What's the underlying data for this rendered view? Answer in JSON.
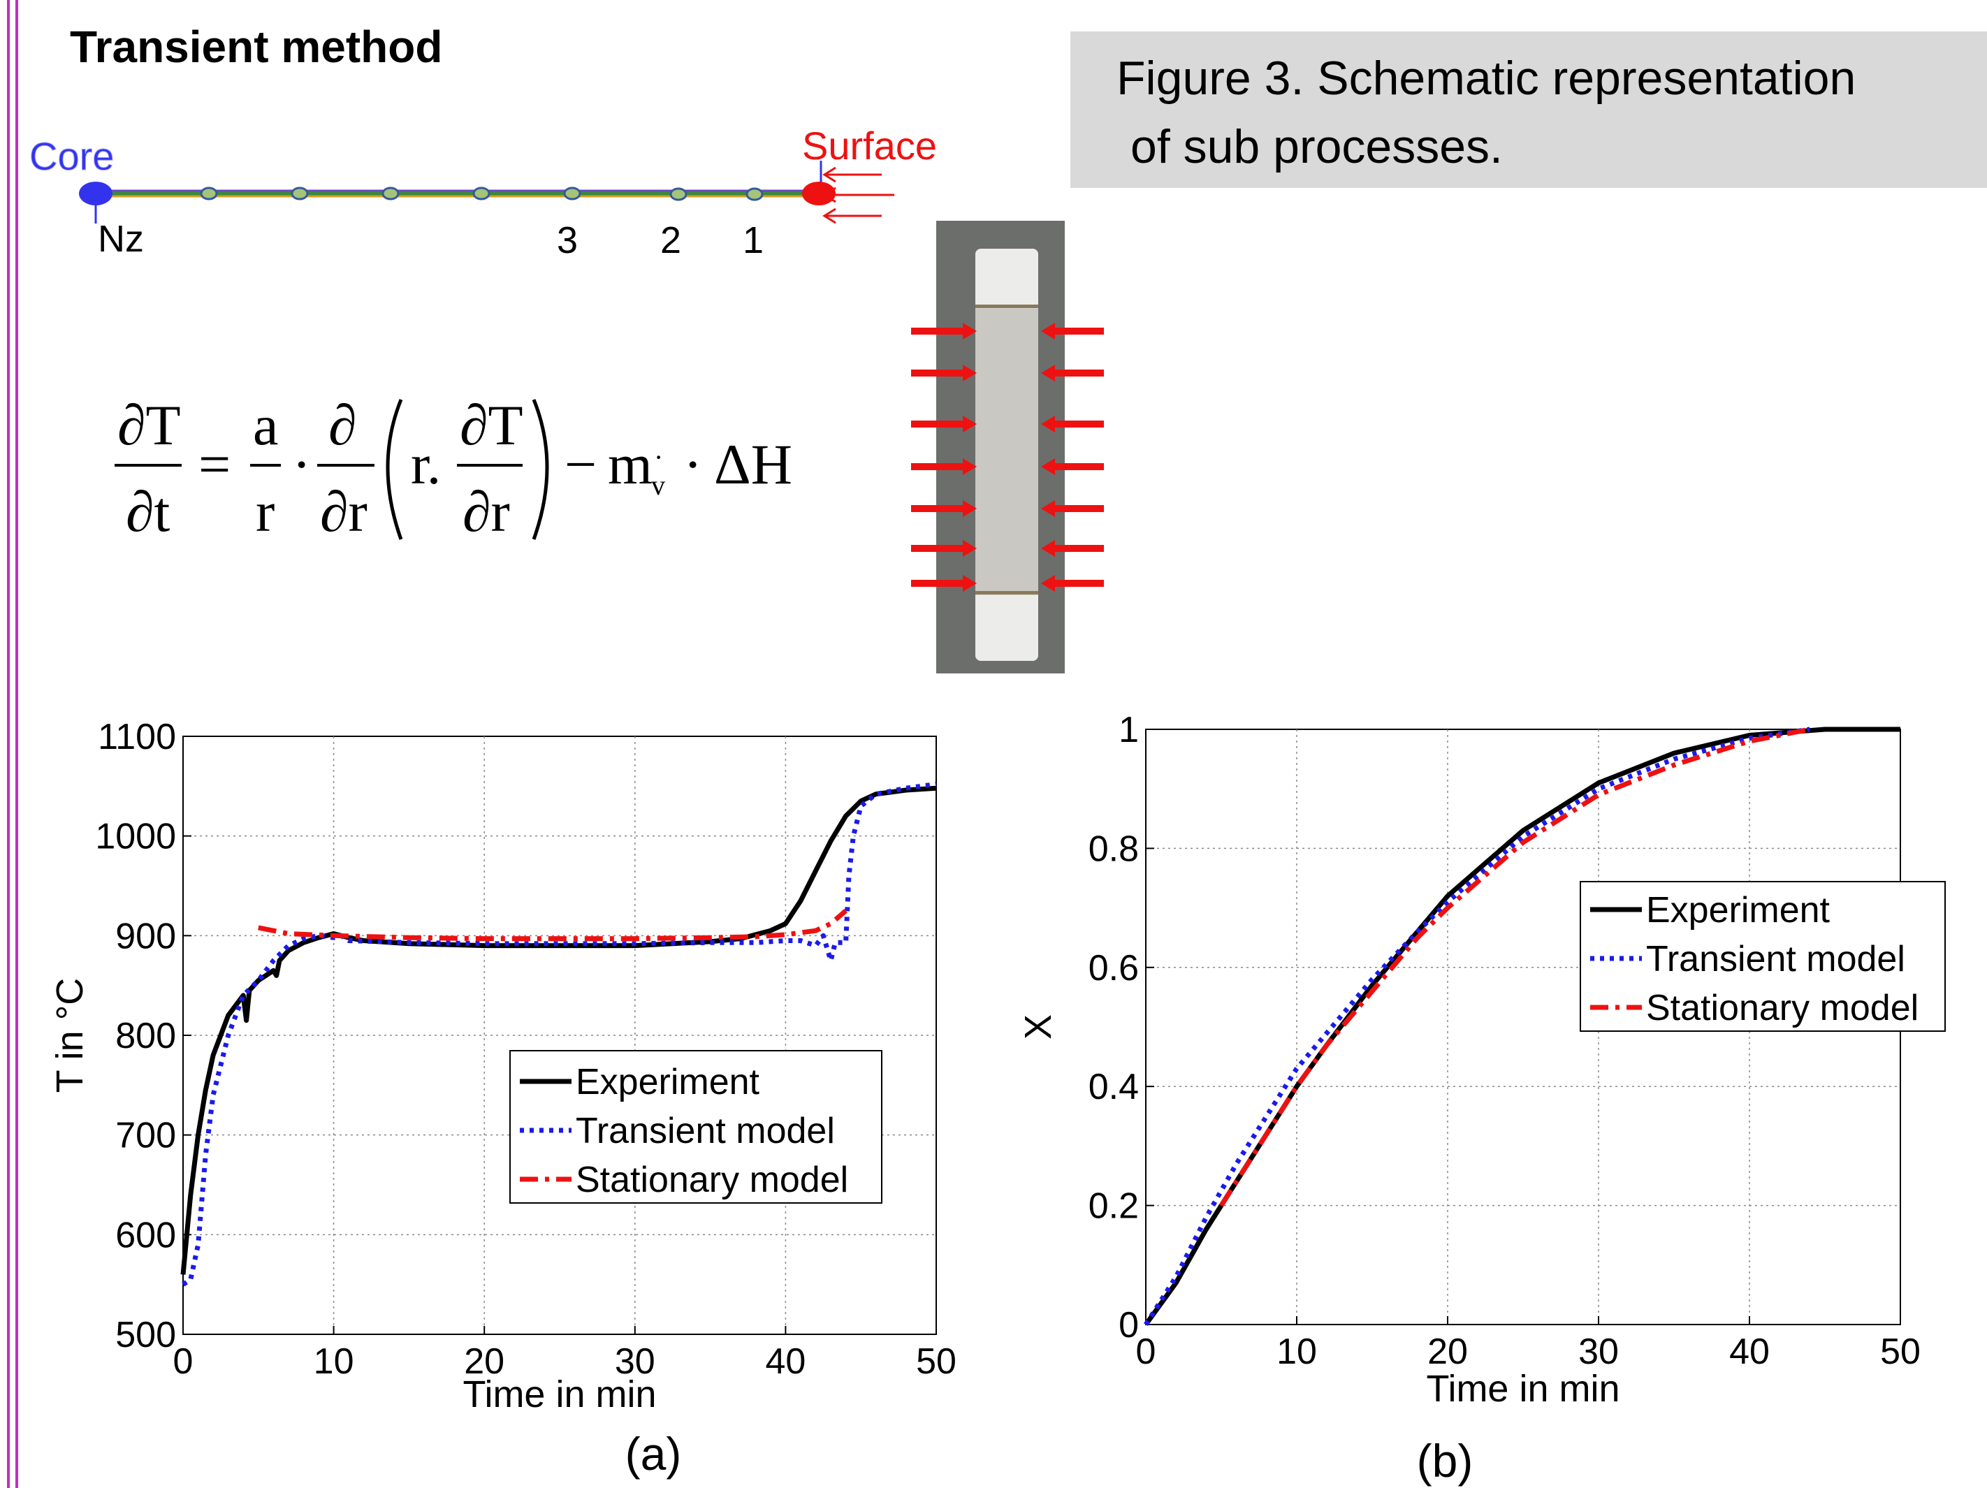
{
  "slide": {
    "title": "Transient method",
    "caption_line1": "Figure 3. Schematic representation",
    "caption_line2": "of sub processes."
  },
  "diagram": {
    "core_label": "Core",
    "surface_label": "Surface",
    "node_labels": [
      "Nz",
      "3",
      "2",
      "1"
    ],
    "colors": {
      "core": "#3333ee",
      "surface": "#ee1111",
      "arrow": "#ee1111"
    }
  },
  "equation": {
    "lhs_num": "∂T",
    "lhs_den": "∂t",
    "eq": "=",
    "a": "a",
    "r": "r",
    "dot1": "·",
    "d_num": "∂",
    "d_den": "∂r",
    "inner_r": "r.",
    "dT_num": "∂T",
    "dT_den": "∂r",
    "minus": "−",
    "m": "m",
    "m_dot": "·",
    "m_sub": "v",
    "dot2": "·",
    "dH": "ΔH"
  },
  "chart_data": [
    {
      "type": "line",
      "panel_label": "(a)",
      "xlabel": "Time in min",
      "ylabel": "T in °C",
      "xlim": [
        0,
        50
      ],
      "ylim": [
        500,
        1100
      ],
      "xticks": [
        0,
        10,
        20,
        30,
        40,
        50
      ],
      "yticks": [
        500,
        600,
        700,
        800,
        900,
        1000,
        1100
      ],
      "grid": true,
      "legend_position": "right-middle",
      "series": [
        {
          "name": "Experiment",
          "color": "#000000",
          "style": "solid",
          "points": [
            [
              0,
              560
            ],
            [
              0.5,
              640
            ],
            [
              1,
              700
            ],
            [
              1.5,
              745
            ],
            [
              2,
              780
            ],
            [
              3,
              820
            ],
            [
              4,
              840
            ],
            [
              4.2,
              815
            ],
            [
              4.4,
              845
            ],
            [
              5,
              855
            ],
            [
              6,
              865
            ],
            [
              6.2,
              860
            ],
            [
              6.4,
              875
            ],
            [
              7,
              885
            ],
            [
              8,
              893
            ],
            [
              9,
              898
            ],
            [
              10,
              902
            ],
            [
              11,
              898
            ],
            [
              12,
              895
            ],
            [
              15,
              892
            ],
            [
              20,
              890
            ],
            [
              25,
              890
            ],
            [
              30,
              890
            ],
            [
              35,
              894
            ],
            [
              37,
              897
            ],
            [
              39,
              905
            ],
            [
              40,
              912
            ],
            [
              41,
              935
            ],
            [
              42,
              965
            ],
            [
              43,
              995
            ],
            [
              44,
              1020
            ],
            [
              45,
              1035
            ],
            [
              46,
              1042
            ],
            [
              48,
              1046
            ],
            [
              50,
              1048
            ]
          ]
        },
        {
          "name": "Transient model",
          "color": "#1a1aee",
          "style": "dotted",
          "points": [
            [
              0,
              550
            ],
            [
              0.5,
              555
            ],
            [
              1,
              590
            ],
            [
              1.5,
              680
            ],
            [
              2,
              740
            ],
            [
              3,
              800
            ],
            [
              4,
              840
            ],
            [
              5,
              855
            ],
            [
              6,
              875
            ],
            [
              7,
              890
            ],
            [
              8,
              897
            ],
            [
              9,
              900
            ],
            [
              10,
              898
            ],
            [
              10.5,
              900
            ],
            [
              11,
              895
            ],
            [
              15,
              893
            ],
            [
              20,
              892
            ],
            [
              25,
              892
            ],
            [
              30,
              892
            ],
            [
              35,
              893
            ],
            [
              38,
              893
            ],
            [
              40,
              895
            ],
            [
              41,
              895
            ],
            [
              42,
              890
            ],
            [
              42.5,
              900
            ],
            [
              43,
              875
            ],
            [
              43.3,
              893
            ],
            [
              44,
              893
            ],
            [
              44.2,
              960
            ],
            [
              44.5,
              1000
            ],
            [
              45,
              1030
            ],
            [
              46,
              1042
            ],
            [
              48,
              1048
            ],
            [
              50,
              1052
            ]
          ]
        },
        {
          "name": "Stationary model",
          "color": "#ee1111",
          "style": "dashdot",
          "points": [
            [
              5,
              908
            ],
            [
              7,
              902
            ],
            [
              10,
              900
            ],
            [
              15,
              898
            ],
            [
              20,
              897
            ],
            [
              25,
              897
            ],
            [
              30,
              897
            ],
            [
              35,
              898
            ],
            [
              38,
              899
            ],
            [
              40,
              901
            ],
            [
              42,
              905
            ],
            [
              43,
              912
            ],
            [
              44,
              925
            ]
          ]
        }
      ]
    },
    {
      "type": "line",
      "panel_label": "(b)",
      "xlabel": "Time in min",
      "ylabel": "X",
      "xlim": [
        0,
        50
      ],
      "ylim": [
        0,
        1
      ],
      "xticks": [
        0,
        10,
        20,
        30,
        40,
        50
      ],
      "yticks": [
        0,
        0.2,
        0.4,
        0.6,
        0.8,
        1
      ],
      "grid": true,
      "legend_position": "top-right",
      "series": [
        {
          "name": "Experiment",
          "color": "#000000",
          "style": "solid",
          "points": [
            [
              0,
              0
            ],
            [
              2,
              0.07
            ],
            [
              4,
              0.16
            ],
            [
              6,
              0.24
            ],
            [
              8,
              0.32
            ],
            [
              10,
              0.4
            ],
            [
              12,
              0.47
            ],
            [
              15,
              0.57
            ],
            [
              18,
              0.66
            ],
            [
              20,
              0.72
            ],
            [
              25,
              0.83
            ],
            [
              30,
              0.91
            ],
            [
              35,
              0.96
            ],
            [
              40,
              0.99
            ],
            [
              45,
              1.0
            ],
            [
              50,
              1.0
            ]
          ]
        },
        {
          "name": "Transient model",
          "color": "#1a1aee",
          "style": "dotted",
          "points": [
            [
              0,
              0
            ],
            [
              2,
              0.08
            ],
            [
              4,
              0.18
            ],
            [
              6,
              0.27
            ],
            [
              8,
              0.35
            ],
            [
              10,
              0.43
            ],
            [
              12,
              0.49
            ],
            [
              15,
              0.58
            ],
            [
              18,
              0.66
            ],
            [
              20,
              0.71
            ],
            [
              25,
              0.82
            ],
            [
              30,
              0.9
            ],
            [
              35,
              0.95
            ],
            [
              40,
              0.985
            ],
            [
              44,
              1.0
            ]
          ]
        },
        {
          "name": "Stationary model",
          "color": "#ee1111",
          "style": "dashdot",
          "points": [
            [
              5,
              0.2
            ],
            [
              6,
              0.24
            ],
            [
              8,
              0.32
            ],
            [
              10,
              0.4
            ],
            [
              12,
              0.47
            ],
            [
              15,
              0.56
            ],
            [
              18,
              0.65
            ],
            [
              20,
              0.7
            ],
            [
              25,
              0.81
            ],
            [
              30,
              0.89
            ],
            [
              35,
              0.94
            ],
            [
              40,
              0.98
            ],
            [
              44,
              1.0
            ]
          ]
        }
      ]
    }
  ]
}
